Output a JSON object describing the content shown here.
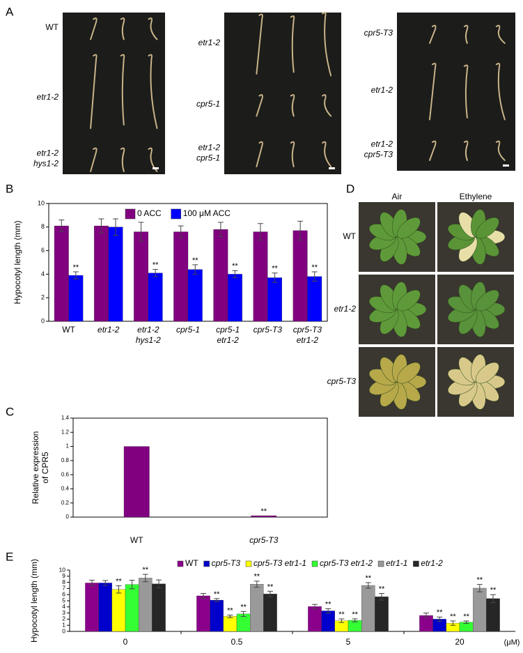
{
  "panel_labels": [
    "A",
    "B",
    "C",
    "D",
    "E"
  ],
  "panel_a": {
    "groups": [
      {
        "labels": [
          [
            "WT"
          ],
          [
            "etr1-2"
          ],
          [
            "etr1-2",
            "hys1-2"
          ]
        ]
      },
      {
        "labels": [
          [
            "etr1-2"
          ],
          [
            "cpr5-1"
          ],
          [
            "etr1-2",
            "cpr5-1"
          ]
        ]
      },
      {
        "labels": [
          [
            "cpr5-T3"
          ],
          [
            "etr1-2"
          ],
          [
            "etr1-2",
            "cpr5-T3"
          ]
        ]
      }
    ]
  },
  "panel_d": {
    "columns": [
      "Air",
      "Ethylene"
    ],
    "rows": [
      "WT",
      "etr1-2",
      "cpr5-T3"
    ]
  },
  "chart_data": [
    {
      "type": "bar",
      "ylabel": [
        "Hypocotyl length (mm)"
      ],
      "categories": [
        [
          "WT"
        ],
        [
          "etr1-2"
        ],
        [
          "etr1-2",
          "hys1-2"
        ],
        [
          "cpr5-1"
        ],
        [
          "cpr5-1",
          "etr1-2"
        ],
        [
          "cpr5-T3"
        ],
        [
          "cpr5-T3",
          "etr1-2"
        ]
      ],
      "series": [
        {
          "name": "0 ACC",
          "color": "#800080",
          "values": [
            8.1,
            8.1,
            7.6,
            7.6,
            7.8,
            7.6,
            7.7
          ],
          "errors": [
            0.5,
            0.6,
            0.8,
            0.5,
            0.6,
            0.7,
            0.8
          ],
          "marks": [
            null,
            null,
            null,
            null,
            null,
            null,
            null
          ]
        },
        {
          "name": "100 μM ACC",
          "color": "#0000ff",
          "values": [
            3.9,
            8.0,
            4.1,
            4.4,
            4.0,
            3.7,
            3.8
          ],
          "errors": [
            0.3,
            0.7,
            0.3,
            0.4,
            0.3,
            0.4,
            0.4
          ],
          "marks": [
            "**",
            null,
            "**",
            "**",
            "**",
            "**",
            "**"
          ]
        }
      ],
      "ylim": [
        0,
        10
      ],
      "yticks": [
        0,
        2,
        4,
        6,
        8,
        10
      ],
      "frame": true,
      "legend": "top"
    },
    {
      "type": "bar",
      "ylabel": [
        "Relative expression",
        "of CPR5"
      ],
      "categories": [
        [
          "WT"
        ],
        [
          "cpr5-T3"
        ]
      ],
      "series": [
        {
          "color": "#800080",
          "values": [
            1,
            0.02
          ],
          "marks": [
            null,
            "**"
          ]
        }
      ],
      "ylim": [
        0,
        1.4
      ],
      "yticks": [
        0,
        0.2,
        0.4,
        0.6,
        0.8,
        1,
        1.2,
        1.4
      ],
      "frame": true
    },
    {
      "type": "bar",
      "ylabel": [
        "Hypocotyl length (mm)"
      ],
      "categories": [
        [
          "0"
        ],
        [
          "0.5"
        ],
        [
          "5"
        ],
        [
          "20"
        ]
      ],
      "x_unit": "(μM)",
      "series": [
        {
          "name": "WT",
          "color": "#8b008b",
          "values": [
            7.9,
            5.8,
            4.05,
            2.6
          ],
          "errors": [
            0.45,
            0.4,
            0.35,
            0.4
          ],
          "marks": [
            null,
            null,
            null,
            null
          ]
        },
        {
          "name": "cpr5-T3",
          "color": "#0000cc",
          "values": [
            7.9,
            5.1,
            3.35,
            2.0
          ],
          "errors": [
            0.4,
            0.25,
            0.35,
            0.35
          ],
          "marks": [
            null,
            "**",
            "**",
            "**"
          ]
        },
        {
          "name": "cpr5-T3 etr1-1",
          "color": "#ffff00",
          "values": [
            6.85,
            2.45,
            1.75,
            1.35
          ],
          "errors": [
            0.6,
            0.2,
            0.3,
            0.35
          ],
          "marks": [
            "**",
            "**",
            "**",
            "**"
          ]
        },
        {
          "name": "cpr5-T3 etr1-2",
          "color": "#33ff33",
          "values": [
            7.65,
            2.85,
            1.8,
            1.5
          ],
          "errors": [
            0.7,
            0.4,
            0.25,
            0.2
          ],
          "marks": [
            null,
            "**",
            "**",
            "**"
          ]
        },
        {
          "name": "etr1-1",
          "color": "#999999",
          "values": [
            8.7,
            7.7,
            7.5,
            7.05
          ],
          "errors": [
            0.6,
            0.5,
            0.45,
            0.6
          ],
          "marks": [
            "**",
            "**",
            "**",
            "**"
          ]
        },
        {
          "name": "etr1-2",
          "color": "#262626",
          "values": [
            7.75,
            6.1,
            5.65,
            5.35
          ],
          "errors": [
            0.65,
            0.45,
            0.55,
            0.65
          ],
          "marks": [
            null,
            "**",
            "**",
            "**"
          ]
        }
      ],
      "ylim": [
        0,
        10
      ],
      "yticks": [
        0,
        1,
        2,
        3,
        4,
        5,
        6,
        7,
        8,
        9,
        10
      ],
      "frame": false,
      "legend": "top"
    }
  ]
}
